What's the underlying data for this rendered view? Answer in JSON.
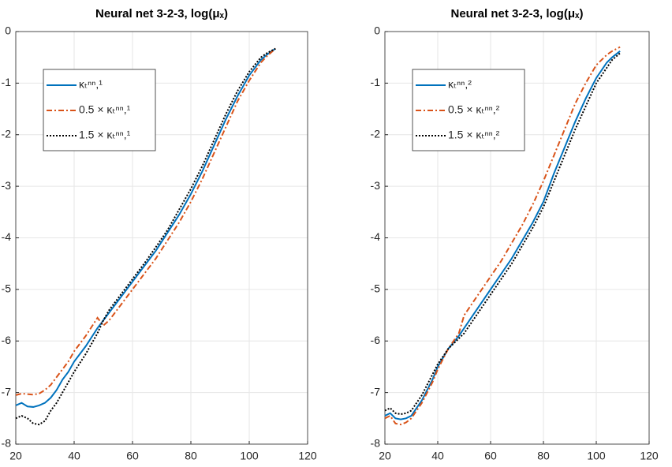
{
  "chart_data": [
    {
      "type": "line",
      "title": "Neural net 3-2-3, log(μₓ)",
      "x": [
        20,
        22,
        24,
        26,
        28,
        30,
        32,
        34,
        36,
        38,
        40,
        44,
        48,
        50,
        52,
        56,
        60,
        64,
        68,
        72,
        76,
        80,
        84,
        88,
        92,
        96,
        100,
        104,
        106,
        109
      ],
      "series": [
        {
          "name": "κₜⁿⁿ,¹",
          "color": "#0072bd",
          "linestyle": "solid",
          "values": [
            -7.25,
            -7.2,
            -7.27,
            -7.28,
            -7.25,
            -7.2,
            -7.1,
            -6.95,
            -6.75,
            -6.6,
            -6.4,
            -6.1,
            -5.75,
            -5.6,
            -5.45,
            -5.15,
            -4.85,
            -4.55,
            -4.25,
            -3.9,
            -3.55,
            -3.15,
            -2.7,
            -2.2,
            -1.7,
            -1.25,
            -0.85,
            -0.55,
            -0.45,
            -0.33
          ]
        },
        {
          "name": "0.5 × κₜⁿⁿ,¹",
          "color": "#d95319",
          "linestyle": "dashdot",
          "values": [
            -7.05,
            -7.02,
            -7.03,
            -7.04,
            -7.02,
            -6.95,
            -6.85,
            -6.7,
            -6.55,
            -6.4,
            -6.2,
            -5.9,
            -5.55,
            -5.7,
            -5.6,
            -5.3,
            -5.0,
            -4.7,
            -4.4,
            -4.05,
            -3.7,
            -3.3,
            -2.85,
            -2.35,
            -1.85,
            -1.35,
            -0.95,
            -0.6,
            -0.48,
            -0.33
          ]
        },
        {
          "name": "1.5 × κₜⁿⁿ,¹",
          "color": "#000000",
          "linestyle": "dotted",
          "values": [
            -7.5,
            -7.45,
            -7.5,
            -7.6,
            -7.62,
            -7.55,
            -7.35,
            -7.2,
            -7.0,
            -6.8,
            -6.6,
            -6.25,
            -5.85,
            -5.6,
            -5.4,
            -5.1,
            -4.8,
            -4.5,
            -4.18,
            -3.85,
            -3.45,
            -3.05,
            -2.6,
            -2.1,
            -1.6,
            -1.15,
            -0.78,
            -0.5,
            -0.42,
            -0.33
          ]
        }
      ],
      "xlim": [
        20,
        120
      ],
      "xticks": [
        20,
        40,
        60,
        80,
        100,
        120
      ],
      "ylim": [
        -8,
        0
      ],
      "yticks": [
        -8,
        -7,
        -6,
        -5,
        -4,
        -3,
        -2,
        -1,
        0
      ],
      "grid": true,
      "legend": "upper left"
    },
    {
      "type": "line",
      "title": "Neural net 3-2-3, log(μₓ)",
      "x": [
        20,
        22,
        24,
        26,
        28,
        30,
        32,
        34,
        36,
        38,
        40,
        44,
        48,
        50,
        52,
        56,
        60,
        64,
        68,
        72,
        76,
        80,
        84,
        88,
        92,
        96,
        100,
        104,
        106,
        109
      ],
      "series": [
        {
          "name": "κₜⁿⁿ,²",
          "color": "#0072bd",
          "linestyle": "solid",
          "values": [
            -7.45,
            -7.4,
            -7.5,
            -7.52,
            -7.5,
            -7.45,
            -7.3,
            -7.15,
            -6.95,
            -6.75,
            -6.5,
            -6.15,
            -5.9,
            -5.75,
            -5.6,
            -5.3,
            -5.0,
            -4.7,
            -4.4,
            -4.05,
            -3.7,
            -3.3,
            -2.75,
            -2.25,
            -1.75,
            -1.3,
            -0.9,
            -0.6,
            -0.5,
            -0.38
          ]
        },
        {
          "name": "0.5 × κₜⁿⁿ,²",
          "color": "#d95319",
          "linestyle": "dashdot",
          "values": [
            -7.5,
            -7.45,
            -7.6,
            -7.62,
            -7.58,
            -7.5,
            -7.35,
            -7.2,
            -7.0,
            -6.8,
            -6.55,
            -6.15,
            -5.85,
            -5.5,
            -5.35,
            -5.05,
            -4.75,
            -4.45,
            -4.1,
            -3.75,
            -3.35,
            -2.9,
            -2.4,
            -1.9,
            -1.4,
            -1.0,
            -0.65,
            -0.45,
            -0.38,
            -0.3
          ]
        },
        {
          "name": "1.5 × κₜⁿⁿ,²",
          "color": "#000000",
          "linestyle": "dotted",
          "values": [
            -7.35,
            -7.3,
            -7.4,
            -7.42,
            -7.4,
            -7.35,
            -7.2,
            -7.05,
            -6.85,
            -6.65,
            -6.45,
            -6.15,
            -5.95,
            -5.85,
            -5.7,
            -5.4,
            -5.1,
            -4.8,
            -4.5,
            -4.15,
            -3.8,
            -3.4,
            -2.9,
            -2.4,
            -1.9,
            -1.45,
            -1.0,
            -0.7,
            -0.55,
            -0.42
          ]
        }
      ],
      "xlim": [
        20,
        120
      ],
      "xticks": [
        20,
        40,
        60,
        80,
        100,
        120
      ],
      "ylim": [
        -8,
        0
      ],
      "yticks": [
        -8,
        -7,
        -6,
        -5,
        -4,
        -3,
        -2,
        -1,
        0
      ],
      "grid": true,
      "legend": "upper left"
    }
  ]
}
